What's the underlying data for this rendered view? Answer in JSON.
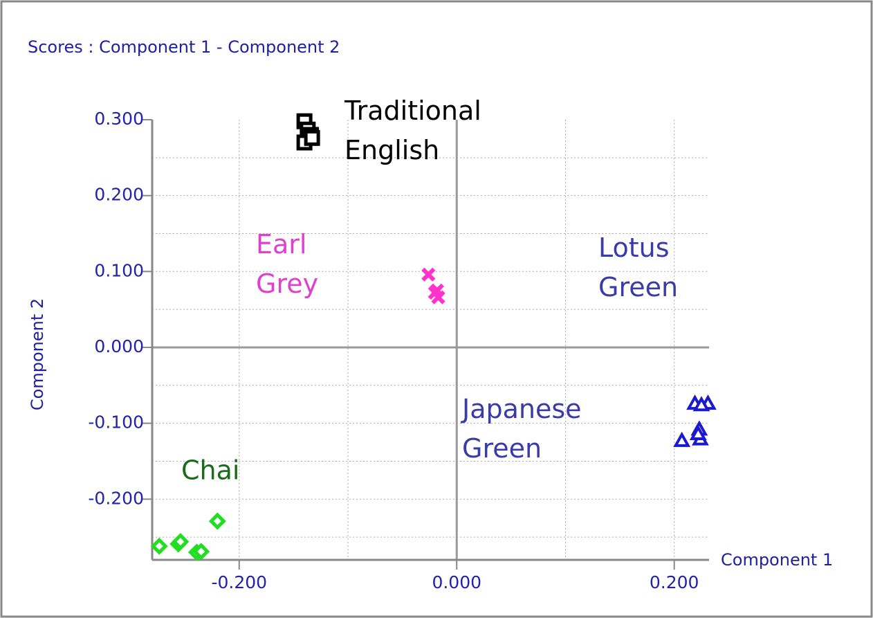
{
  "chart_data": {
    "type": "scatter",
    "title": "Scores : Component 1 - Component 2",
    "x_label": "Component 1",
    "y_label": "Component 2",
    "xlim": [
      -0.28,
      0.232
    ],
    "ylim": [
      -0.28,
      0.3
    ],
    "xticks": [
      {
        "value": -0.2,
        "label": "-0.200"
      },
      {
        "value": 0,
        "label": "0.000"
      },
      {
        "value": 0.2,
        "label": "0.200"
      }
    ],
    "yticks": [
      {
        "value": 0.3,
        "label": "0.300"
      },
      {
        "value": 0.2,
        "label": "0.200"
      },
      {
        "value": 0.1,
        "label": "0.100"
      },
      {
        "value": 0,
        "label": "0.000"
      },
      {
        "value": -0.1,
        "label": "-0.100"
      },
      {
        "value": -0.2,
        "label": "-0.200"
      }
    ],
    "xgrid": [
      -0.2,
      -0.1,
      0,
      0.1,
      0.2
    ],
    "ygrid": [
      0.25,
      0.2,
      0.15,
      0.1,
      0.05,
      -0.05,
      -0.1,
      -0.15,
      -0.2,
      -0.25
    ],
    "grid": true,
    "series": [
      {
        "name": "Traditional English",
        "marker": "square",
        "color": "#000000",
        "label_color": "#000000",
        "x": [
          -0.14,
          -0.137,
          -0.134,
          -0.14,
          -0.133
        ],
        "y": [
          0.298,
          0.287,
          0.28,
          0.27,
          0.276
        ]
      },
      {
        "name": "Earl Grey",
        "marker": "cross",
        "color": "#ff33cc",
        "label_color": "#e040d0",
        "x": [
          -0.026,
          -0.02,
          -0.018,
          -0.017
        ],
        "y": [
          0.096,
          0.072,
          0.075,
          0.066
        ]
      },
      {
        "name": "Lotus Green",
        "marker": "triangle",
        "color": "#1a1acc",
        "label_color": "#3a3aa8",
        "x": [
          0.219,
          0.231,
          0.225
        ],
        "y": [
          -0.074,
          -0.074,
          -0.076
        ]
      },
      {
        "name": "Japanese Green",
        "marker": "triangle",
        "color": "#1a1acc",
        "label_color": "#3a3aa8",
        "x": [
          0.207,
          0.223,
          0.224,
          0.222
        ],
        "y": [
          -0.123,
          -0.108,
          -0.121,
          -0.114
        ]
      },
      {
        "name": "Chai",
        "marker": "diamond",
        "color": "#22dd22",
        "label_color": "#1a6b1a",
        "x": [
          -0.2735,
          -0.256,
          -0.254,
          -0.239,
          -0.235,
          -0.22
        ],
        "y": [
          -0.262,
          -0.259,
          -0.256,
          -0.27,
          -0.269,
          -0.229
        ]
      }
    ]
  }
}
